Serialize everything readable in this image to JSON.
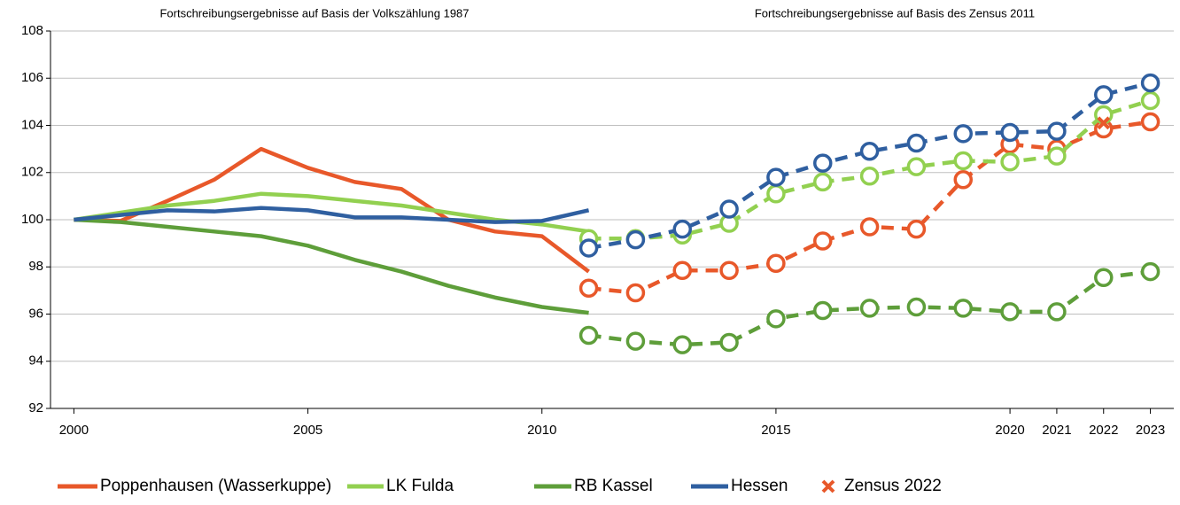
{
  "chart_data": {
    "type": "line",
    "annotations": [
      "Fortschreibungsergebnisse auf Basis der Volkszählung 1987",
      "Fortschreibungsergebnisse auf Basis des Zensus 2011"
    ],
    "x": [
      2000,
      2001,
      2002,
      2003,
      2004,
      2005,
      2006,
      2007,
      2008,
      2009,
      2010,
      2011
    ],
    "x_zensus2011": [
      2011,
      2012,
      2013,
      2014,
      2015,
      2016,
      2017,
      2018,
      2019,
      2020,
      2021,
      2022,
      2023
    ],
    "series": [
      {
        "name": "Poppenhausen (Wasserkuppe)",
        "color": "#e8582a",
        "values": [
          100,
          99.95,
          100.8,
          101.7,
          103.0,
          102.2,
          101.6,
          101.3,
          100.0,
          99.5,
          99.3,
          97.8
        ],
        "values_zensus2011": [
          97.1,
          96.9,
          97.85,
          97.85,
          98.15,
          99.1,
          99.7,
          99.6,
          101.7,
          103.2,
          103.0,
          103.85,
          104.15
        ]
      },
      {
        "name": "LK Fulda",
        "color": "#92d050",
        "values": [
          100,
          100.3,
          100.6,
          100.8,
          101.1,
          101.0,
          100.8,
          100.6,
          100.3,
          100.0,
          99.8,
          99.5
        ],
        "values_zensus2011": [
          99.2,
          99.2,
          99.35,
          99.85,
          101.1,
          101.6,
          101.85,
          102.25,
          102.5,
          102.45,
          102.7,
          104.45,
          105.05
        ]
      },
      {
        "name": "RB Kassel",
        "color": "#5e9e3a",
        "values": [
          100,
          99.9,
          99.7,
          99.5,
          99.3,
          98.9,
          98.3,
          97.8,
          97.2,
          96.7,
          96.3,
          96.05
        ],
        "values_zensus2011": [
          95.1,
          94.85,
          94.7,
          94.8,
          95.8,
          96.15,
          96.25,
          96.3,
          96.25,
          96.1,
          96.1,
          97.55,
          97.8
        ]
      },
      {
        "name": "Hessen",
        "color": "#2f5fa0",
        "values": [
          100,
          100.2,
          100.4,
          100.35,
          100.5,
          100.4,
          100.1,
          100.1,
          100.0,
          99.9,
          99.95,
          100.4
        ],
        "values_zensus2011": [
          98.8,
          99.15,
          99.6,
          100.45,
          101.8,
          102.4,
          102.9,
          103.25,
          103.65,
          103.7,
          103.75,
          105.3,
          105.8
        ]
      }
    ],
    "zensus_2022": {
      "name": "Zensus 2022",
      "color": "#e8582a",
      "x": [
        2022
      ],
      "values": [
        104.1
      ]
    },
    "xlim": [
      1999.5,
      2023.5
    ],
    "xticks": [
      2000,
      2005,
      2010,
      2015,
      2020,
      2021,
      2022,
      2023
    ],
    "ylim": [
      92,
      108
    ],
    "yticks": [
      92,
      94,
      96,
      98,
      100,
      102,
      104,
      106,
      108
    ],
    "grid": true
  }
}
